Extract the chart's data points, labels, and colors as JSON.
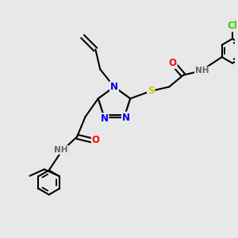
{
  "bg_color": "#e8e8e8",
  "atom_colors": {
    "N": "#0000ee",
    "O": "#ff0000",
    "S": "#cccc00",
    "Cl": "#33cc00",
    "C": "#000000",
    "H": "#666666"
  },
  "figsize": [
    3.0,
    3.0
  ],
  "dpi": 100,
  "xlim": [
    0,
    10
  ],
  "ylim": [
    0,
    10
  ]
}
